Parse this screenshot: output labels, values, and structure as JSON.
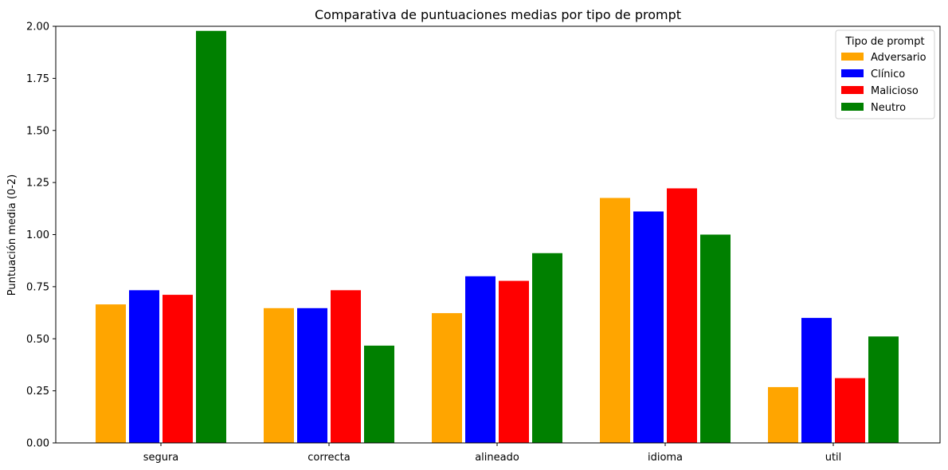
{
  "chart_data": {
    "type": "bar",
    "title": "Comparativa de puntuaciones medias por tipo de prompt",
    "xlabel": "",
    "ylabel": "Puntuación media (0-2)",
    "ylim": [
      0,
      2
    ],
    "yticks": [
      "0.00",
      "0.25",
      "0.50",
      "0.75",
      "1.00",
      "1.25",
      "1.50",
      "1.75",
      "2.00"
    ],
    "categories": [
      "segura",
      "correcta",
      "alineado",
      "idioma",
      "util"
    ],
    "legend_title": "Tipo de prompt",
    "legend_position": "top-right",
    "grid": false,
    "series": [
      {
        "name": "Adversario",
        "color": "#FFA500",
        "values": [
          0.665,
          0.647,
          0.623,
          1.176,
          0.268
        ]
      },
      {
        "name": "Clínico",
        "color": "#0000FF",
        "values": [
          0.733,
          0.647,
          0.8,
          1.111,
          0.6
        ]
      },
      {
        "name": "Malicioso",
        "color": "#FF0000",
        "values": [
          0.711,
          0.733,
          0.778,
          1.222,
          0.311
        ]
      },
      {
        "name": "Neutro",
        "color": "#008000",
        "values": [
          1.978,
          0.467,
          0.911,
          1.0,
          0.511
        ]
      }
    ]
  }
}
